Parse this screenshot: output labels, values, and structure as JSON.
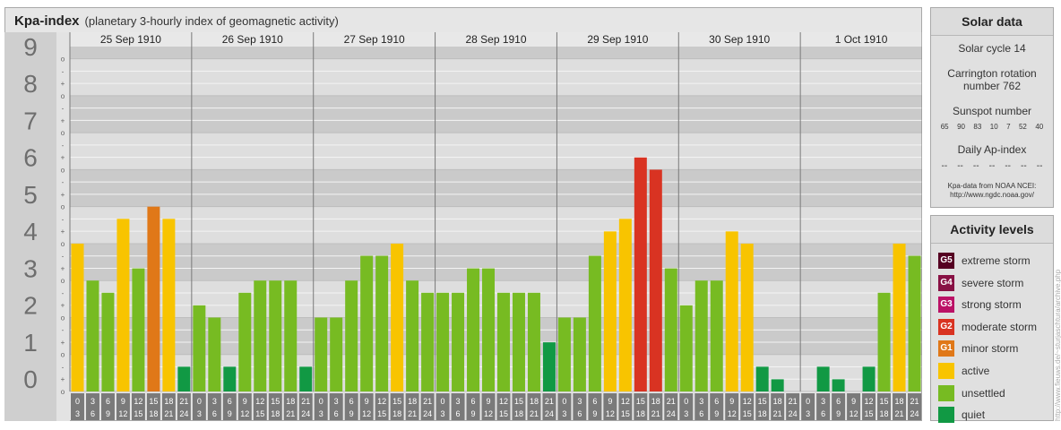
{
  "header": {
    "title": "Kpa-index",
    "subtitle": "(planetary 3-hourly index of geomagnetic activity)"
  },
  "chart_data": {
    "type": "bar",
    "days": [
      "25 Sep 1910",
      "26 Sep 1910",
      "27 Sep 1910",
      "28 Sep 1910",
      "29 Sep 1910",
      "30 Sep 1910",
      "1 Oct 1910"
    ],
    "interval_labels": [
      [
        "0",
        "3"
      ],
      [
        "3",
        "6"
      ],
      [
        "6",
        "9"
      ],
      [
        "9",
        "12"
      ],
      [
        "12",
        "15"
      ],
      [
        "15",
        "18"
      ],
      [
        "18",
        "21"
      ],
      [
        "21",
        "24"
      ]
    ],
    "y_tick_labels": [
      "0",
      "1",
      "2",
      "3",
      "4",
      "5",
      "6",
      "7",
      "8",
      "9"
    ],
    "y_minor_labels": [
      "o",
      "+",
      "-"
    ],
    "ylim": [
      0,
      9.33
    ],
    "values": [
      4,
      3,
      2.67,
      4.67,
      3.33,
      5,
      4.67,
      0.67,
      2.33,
      2,
      0.67,
      2.67,
      3,
      3,
      3,
      0.67,
      2,
      2,
      3,
      3.67,
      3.67,
      4,
      3,
      2.67,
      2.67,
      2.67,
      3.33,
      3.33,
      2.67,
      2.67,
      2.67,
      1.33,
      2,
      2,
      3.67,
      4.33,
      4.67,
      6.33,
      6,
      3.33,
      2.33,
      3,
      3,
      4.33,
      4,
      0.67,
      0.33,
      0,
      0,
      0.67,
      0.33,
      0,
      0.67,
      2.67,
      4,
      3.67
    ],
    "level_colors": {
      "quiet": "#119944",
      "unsettled": "#77bb22",
      "active": "#f8c400",
      "G1": "#e07818",
      "G2": "#d93322",
      "G3": "#bb1166",
      "G4": "#881144",
      "G5": "#550022"
    },
    "grid": true
  },
  "solar": {
    "heading": "Solar data",
    "cycle": "Solar cycle 14",
    "carrington_line1": "Carrington rotation",
    "carrington_line2": "number 762",
    "sunspot_label": "Sunspot number",
    "sunspots": [
      "65",
      "90",
      "83",
      "10",
      "7",
      "52",
      "40"
    ],
    "ap_label": "Daily Ap-index",
    "ap_values": [
      "--",
      "--",
      "--",
      "--",
      "--",
      "--",
      "--"
    ],
    "credit_line1": "Kpa-data from NOAA NCEI:",
    "credit_line2": "http://www.ngdc.noaa.gov/"
  },
  "levels": {
    "heading": "Activity levels",
    "items": [
      {
        "code": "G5",
        "label": "extreme storm",
        "color": "#550022"
      },
      {
        "code": "G4",
        "label": "severe storm",
        "color": "#881144"
      },
      {
        "code": "G3",
        "label": "strong storm",
        "color": "#bb1166"
      },
      {
        "code": "G2",
        "label": "moderate storm",
        "color": "#d93322"
      },
      {
        "code": "G1",
        "label": "minor storm",
        "color": "#e07818"
      },
      {
        "code": "",
        "label": "active",
        "color": "#f8c400"
      },
      {
        "code": "",
        "label": "unsettled",
        "color": "#77bb22"
      },
      {
        "code": "",
        "label": "quiet",
        "color": "#119944"
      }
    ]
  },
  "side_credit": "http://www.fieuws.de/~sturjaschtura/archive.php"
}
